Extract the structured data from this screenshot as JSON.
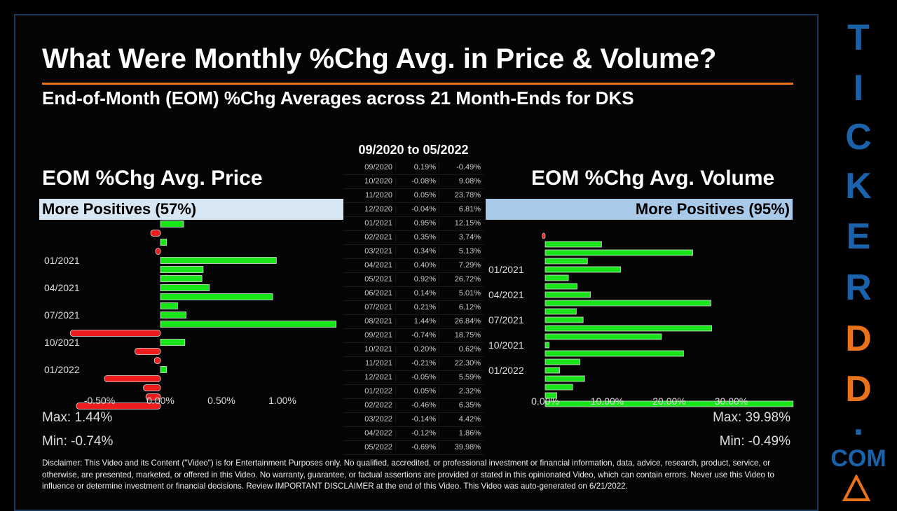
{
  "title": "What Were Monthly %Chg Avg. in Price & Volume?",
  "subtitle": "End-of-Month (EOM) %Chg Averages across 21 Month-Ends for DKS",
  "date_range": "09/2020 to 05/2022",
  "price": {
    "title": "EOM %Chg Avg. Price",
    "band": "More Positives (57%)",
    "max": "Max: 1.44%",
    "min": "Min: -0.74%"
  },
  "volume": {
    "title": "EOM %Chg Avg. Volume",
    "band": "More Positives (95%)",
    "max": "Max: 39.98%",
    "min": "Min: -0.49%"
  },
  "table": [
    [
      "09/2020",
      "0.19%",
      "-0.49%"
    ],
    [
      "10/2020",
      "-0.08%",
      "9.08%"
    ],
    [
      "11/2020",
      "0.05%",
      "23.78%"
    ],
    [
      "12/2020",
      "-0.04%",
      "6.81%"
    ],
    [
      "01/2021",
      "0.95%",
      "12.15%"
    ],
    [
      "02/2021",
      "0.35%",
      "3.74%"
    ],
    [
      "03/2021",
      "0.34%",
      "5.13%"
    ],
    [
      "04/2021",
      "0.40%",
      "7.29%"
    ],
    [
      "05/2021",
      "0.92%",
      "26.72%"
    ],
    [
      "06/2021",
      "0.14%",
      "5.01%"
    ],
    [
      "07/2021",
      "0.21%",
      "6.12%"
    ],
    [
      "08/2021",
      "1.44%",
      "26.84%"
    ],
    [
      "09/2021",
      "-0.74%",
      "18.75%"
    ],
    [
      "10/2021",
      "0.20%",
      "0.62%"
    ],
    [
      "11/2021",
      "-0.21%",
      "22.30%"
    ],
    [
      "12/2021",
      "-0.05%",
      "5.59%"
    ],
    [
      "01/2022",
      "0.05%",
      "2.32%"
    ],
    [
      "02/2022",
      "-0.46%",
      "6.35%"
    ],
    [
      "03/2022",
      "-0.14%",
      "4.42%"
    ],
    [
      "04/2022",
      "-0.12%",
      "1.86%"
    ],
    [
      "05/2022",
      "-0.69%",
      "39.98%"
    ]
  ],
  "chart_data": [
    {
      "type": "bar",
      "orientation": "horizontal",
      "categories": [
        "09/2020",
        "10/2020",
        "11/2020",
        "12/2020",
        "01/2021",
        "02/2021",
        "03/2021",
        "04/2021",
        "05/2021",
        "06/2021",
        "07/2021",
        "08/2021",
        "09/2021",
        "10/2021",
        "11/2021",
        "12/2021",
        "01/2022",
        "02/2022",
        "03/2022",
        "04/2022",
        "05/2022"
      ],
      "values": [
        0.19,
        -0.08,
        0.05,
        -0.04,
        0.95,
        0.35,
        0.34,
        0.4,
        0.92,
        0.14,
        0.21,
        1.44,
        -0.74,
        0.2,
        -0.21,
        -0.05,
        0.05,
        -0.46,
        -0.14,
        -0.12,
        -0.69
      ],
      "y_tick_labels": [
        "01/2021",
        "04/2021",
        "07/2021",
        "10/2021",
        "01/2022"
      ],
      "x_tick_labels": [
        "-0.50%",
        "0.00%",
        "0.50%",
        "1.00%"
      ],
      "x_ticks": [
        -0.5,
        0,
        0.5,
        1.0
      ],
      "xlim": [
        -0.75,
        1.45
      ]
    },
    {
      "type": "bar",
      "orientation": "horizontal",
      "categories": [
        "09/2020",
        "10/2020",
        "11/2020",
        "12/2020",
        "01/2021",
        "02/2021",
        "03/2021",
        "04/2021",
        "05/2021",
        "06/2021",
        "07/2021",
        "08/2021",
        "09/2021",
        "10/2021",
        "11/2021",
        "12/2021",
        "01/2022",
        "02/2022",
        "03/2022",
        "04/2022",
        "05/2022"
      ],
      "values": [
        -0.49,
        9.08,
        23.78,
        6.81,
        12.15,
        3.74,
        5.13,
        7.29,
        26.72,
        5.01,
        6.12,
        26.84,
        18.75,
        0.62,
        22.3,
        5.59,
        2.32,
        6.35,
        4.42,
        1.86,
        39.98
      ],
      "y_tick_labels": [
        "01/2021",
        "04/2021",
        "07/2021",
        "10/2021",
        "01/2022"
      ],
      "x_tick_labels": [
        "0.00%",
        "10.00%",
        "20.00%",
        "30.00%"
      ],
      "x_ticks": [
        0,
        10,
        20,
        30
      ],
      "xlim": [
        0,
        40
      ]
    }
  ],
  "colors": {
    "positive": "#19e619",
    "negative": "#ee1c1c",
    "price_band": "#d6e6f2",
    "volume_band": "#a9c9e8",
    "accent": "#e8731a",
    "logo_blue": "#1a62aa",
    "logo_orange": "#e8731a"
  },
  "disclaimer": "Disclaimer: This Video and its Content (\"Video\") is for Entertainment Purposes only. No qualified, accredited, or professional investment or financial information, data, advice, research, product, service, or otherwise, are presented, marketed, or offered in this Video. No warranty, guarantee, or factual assertions are provided or stated in this opinionated Video, which can contain errors. Never use this Video to influence or determine investment or financial decisions. Review IMPORTANT DISCLAIMER at the end of this Video. This Video was auto-generated on 6/21/2022.",
  "logo": {
    "letters": [
      "T",
      "I",
      "C",
      "K",
      "E",
      "R",
      "D",
      "D",
      ".",
      "COM"
    ]
  }
}
